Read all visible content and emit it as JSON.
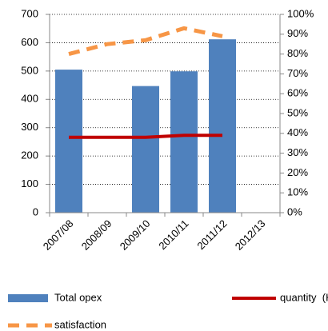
{
  "chart_data": {
    "type": "bar",
    "categories": [
      "2007/08",
      "2008/09",
      "2009/10",
      "2010/11",
      "2011/12",
      "2012/13"
    ],
    "series": [
      {
        "name": "Total opex",
        "type": "bar",
        "color": "#4f81bd",
        "values": [
          505,
          null,
          447,
          499,
          612,
          null
        ]
      },
      {
        "name": "quantity  (Ha)",
        "type": "line",
        "axis": "y2",
        "color": "#c00000",
        "dash": false,
        "values": [
          38,
          38,
          38,
          39,
          39,
          null
        ]
      },
      {
        "name": "satisfaction",
        "type": "line",
        "axis": "y2",
        "color": "#f79646",
        "dash": true,
        "values": [
          80,
          85,
          87,
          93,
          89,
          null
        ]
      }
    ],
    "ylim": [
      0,
      700
    ],
    "yticks": [
      0,
      100,
      200,
      300,
      400,
      500,
      600,
      700
    ],
    "y2lim": [
      0,
      100
    ],
    "y2ticks": [
      {
        "value": 0,
        "label": "0%"
      },
      {
        "value": 10,
        "label": "10%"
      },
      {
        "value": 20,
        "label": "20%"
      },
      {
        "value": 30,
        "label": "30%"
      },
      {
        "value": 40,
        "label": "40%"
      },
      {
        "value": 50,
        "label": "50%"
      },
      {
        "value": 60,
        "label": "60%"
      },
      {
        "value": 70,
        "label": "70%"
      },
      {
        "value": 80,
        "label": "80%"
      },
      {
        "value": 90,
        "label": "90%"
      },
      {
        "value": 100,
        "label": "100%"
      }
    ],
    "grid": true
  }
}
